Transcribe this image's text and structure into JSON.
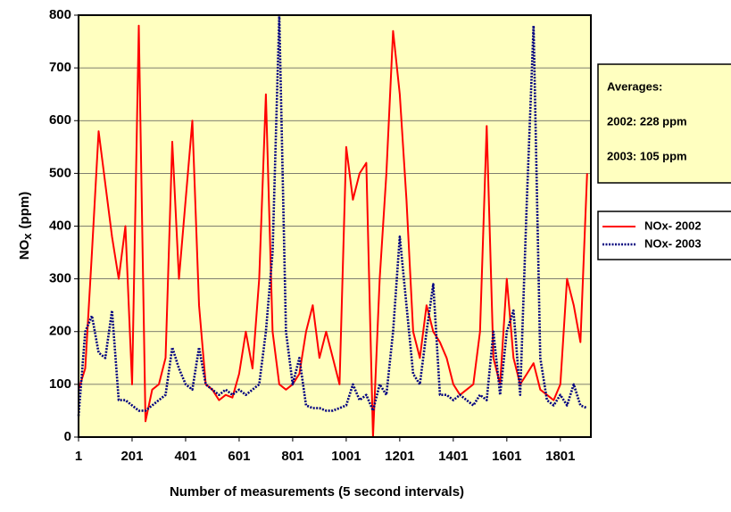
{
  "chart_data": {
    "type": "line",
    "x_label": "Number of measurements (5 second intervals)",
    "y_label": "NO",
    "y_label_sub": "x",
    "y_label_unit": "(ppm)",
    "annotations": [
      "Averages:",
      "2002: 228 ppm",
      "2003: 105 ppm"
    ],
    "x": [
      1,
      26,
      51,
      76,
      101,
      126,
      151,
      176,
      201,
      226,
      251,
      276,
      301,
      326,
      351,
      376,
      401,
      426,
      451,
      476,
      501,
      526,
      551,
      576,
      601,
      626,
      651,
      676,
      701,
      726,
      751,
      776,
      801,
      826,
      851,
      876,
      901,
      926,
      951,
      976,
      1001,
      1026,
      1051,
      1076,
      1101,
      1126,
      1151,
      1176,
      1201,
      1226,
      1251,
      1276,
      1301,
      1326,
      1351,
      1376,
      1401,
      1426,
      1451,
      1476,
      1501,
      1526,
      1551,
      1576,
      1601,
      1626,
      1651,
      1676,
      1701,
      1726,
      1751,
      1776,
      1801,
      1826,
      1851,
      1876,
      1901
    ],
    "series": [
      {
        "name": "NOx- 2002",
        "color": "#ff0000",
        "style": "solid",
        "values": [
          90,
          130,
          350,
          580,
          480,
          380,
          300,
          400,
          100,
          780,
          30,
          90,
          100,
          150,
          560,
          300,
          450,
          600,
          250,
          100,
          90,
          70,
          80,
          75,
          120,
          200,
          130,
          300,
          650,
          200,
          100,
          90,
          100,
          120,
          200,
          250,
          150,
          200,
          150,
          100,
          550,
          450,
          500,
          520,
          0,
          300,
          500,
          770,
          650,
          450,
          200,
          150,
          250,
          200,
          180,
          150,
          100,
          80,
          90,
          100,
          200,
          590,
          150,
          100,
          300,
          150,
          100,
          120,
          140,
          90,
          80,
          70,
          100,
          300,
          250,
          180,
          500
        ]
      },
      {
        "name": "NOx- 2003",
        "color": "#000080",
        "style": "dotted",
        "values": [
          40,
          200,
          230,
          160,
          150,
          240,
          70,
          70,
          60,
          50,
          50,
          60,
          70,
          80,
          170,
          130,
          100,
          90,
          170,
          100,
          90,
          80,
          90,
          80,
          90,
          80,
          90,
          100,
          200,
          350,
          800,
          200,
          100,
          150,
          60,
          55,
          55,
          50,
          50,
          55,
          60,
          100,
          70,
          80,
          50,
          100,
          80,
          200,
          380,
          250,
          120,
          100,
          200,
          290,
          80,
          80,
          70,
          80,
          70,
          60,
          80,
          70,
          200,
          80,
          200,
          240,
          80,
          450,
          780,
          150,
          70,
          60,
          80,
          60,
          100,
          60,
          55
        ]
      }
    ],
    "xlim": [
      1,
      1915
    ],
    "xticks": [
      1,
      201,
      401,
      601,
      801,
      1001,
      1201,
      1401,
      1601,
      1801
    ],
    "ylim": [
      0,
      800
    ],
    "yticks": [
      0,
      100,
      200,
      300,
      400,
      500,
      600,
      700,
      800
    ],
    "grid": true,
    "legend": "right",
    "plot_background": "#ffffc0"
  }
}
